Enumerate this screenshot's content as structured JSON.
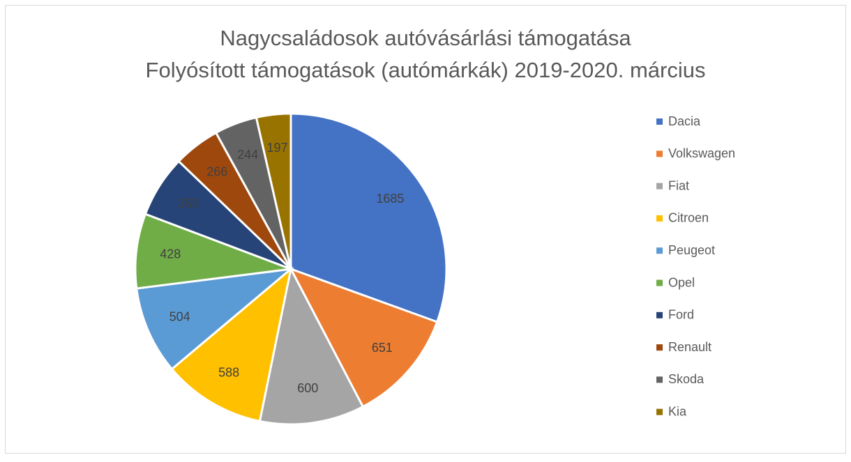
{
  "chart_data": {
    "type": "pie",
    "title": "Nagycsaládosok autóvásárlási támogatása",
    "subtitle": "Folyósított támogatások (autómárkák) 2019-2020. március",
    "categories": [
      "Dacia",
      "Volkswagen",
      "Fiat",
      "Citroen",
      "Peugeot",
      "Opel",
      "Ford",
      "Renault",
      "Skoda",
      "Kia"
    ],
    "values": [
      1685,
      651,
      600,
      588,
      504,
      428,
      355,
      266,
      244,
      197
    ],
    "colors": [
      "#4472C4",
      "#ED7D31",
      "#A5A5A5",
      "#FFC000",
      "#5B9BD5",
      "#70AD47",
      "#264478",
      "#9E480E",
      "#636363",
      "#997300"
    ],
    "legend": "right"
  }
}
